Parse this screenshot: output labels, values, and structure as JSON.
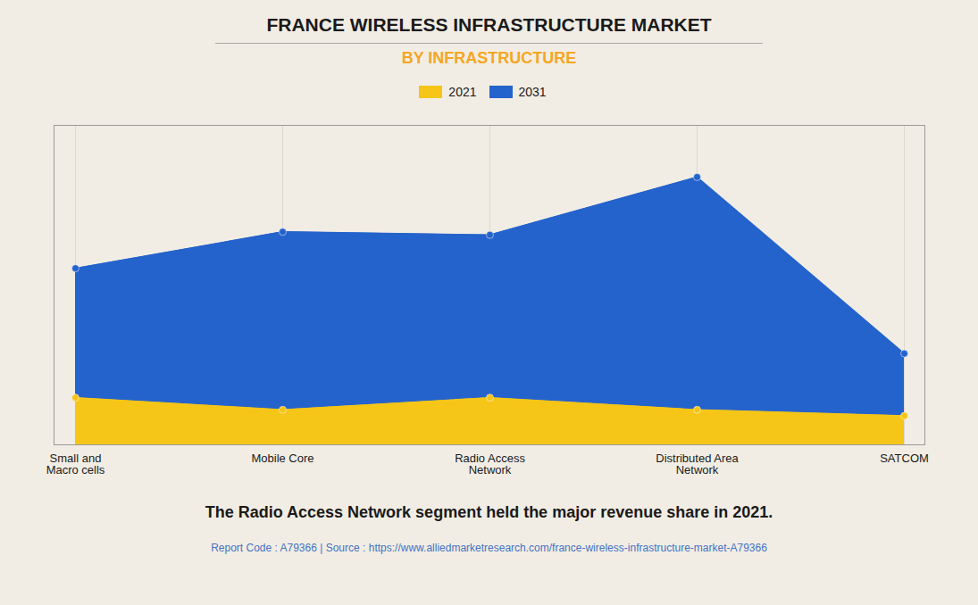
{
  "chart_data": {
    "type": "area",
    "title": "FRANCE WIRELESS INFRASTRUCTURE MARKET",
    "subtitle": "BY INFRASTRUCTURE",
    "categories": [
      "Small and\nMacro cells",
      "Mobile Core",
      "Radio Access\nNetwork",
      "Distributed Area\nNetwork",
      "SATCOM"
    ],
    "series": [
      {
        "name": "2021",
        "color": "#F5C518",
        "values": [
          0.155,
          0.115,
          0.155,
          0.115,
          0.095
        ]
      },
      {
        "name": "2031",
        "color": "#2563CC",
        "values": [
          0.58,
          0.7,
          0.69,
          0.88,
          0.3
        ]
      }
    ],
    "ylim": [
      0,
      1.05
    ],
    "yticks": [],
    "grid": true,
    "tick_labels": "x",
    "legend": "top",
    "annotations": [
      "The Radio Access Network segment held the major revenue share in 2021.",
      "Report Code : A79366  |  Source : https://www.alliedmarketresearch.com/france-wireless-infrastructure-market-A79366"
    ]
  }
}
